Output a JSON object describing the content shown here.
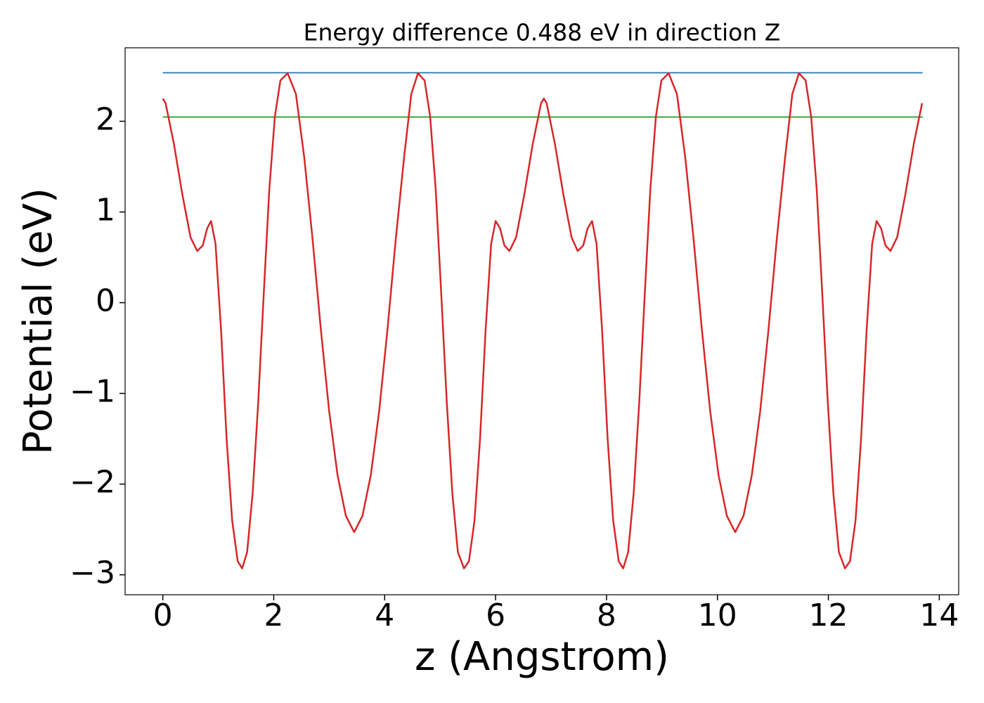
{
  "chart_data": {
    "type": "line",
    "title": "Energy difference 0.488 eV in direction Z",
    "xlabel": "z (Angstrom)",
    "ylabel": "Potential (eV)",
    "xlim": [
      -0.68,
      14.35
    ],
    "ylim": [
      -3.22,
      2.81
    ],
    "xticks": [
      0,
      2,
      4,
      6,
      8,
      10,
      12,
      14
    ],
    "yticks": [
      {
        "value": -3,
        "label": "−3"
      },
      {
        "value": -2,
        "label": "−2"
      },
      {
        "value": -1,
        "label": "−1"
      },
      0,
      1,
      2
    ],
    "series": [
      {
        "color": "#1f77b4",
        "x": [
          0,
          13.7
        ],
        "values": [
          2.535,
          2.535
        ]
      },
      {
        "color": "#2ca02c",
        "x": [
          0,
          13.7
        ],
        "values": [
          2.047,
          2.047
        ]
      },
      {
        "color": "#d62728",
        "x": [
          0,
          0.05,
          0.2,
          0.35,
          0.5,
          0.62,
          0.72,
          0.8,
          0.87,
          0.95,
          1.05,
          1.15,
          1.25,
          1.35,
          1.43,
          1.52,
          1.62,
          1.72,
          1.82,
          1.92,
          2.02,
          2.12,
          2.25,
          2.4,
          2.55,
          2.7,
          2.85,
          3.0,
          3.15,
          3.3,
          3.45,
          3.6,
          3.75,
          3.9,
          4.05,
          4.2,
          4.35,
          4.48,
          4.6,
          4.72,
          4.82,
          4.92,
          5.02,
          5.12,
          5.22,
          5.32,
          5.43,
          5.52,
          5.62,
          5.72,
          5.82,
          5.92,
          6.0,
          6.08,
          6.16,
          6.25,
          6.37,
          6.52,
          6.67,
          6.82,
          6.87,
          6.92,
          7.07,
          7.22,
          7.37,
          7.48,
          7.58,
          7.66,
          7.74,
          7.82,
          7.92,
          8.02,
          8.12,
          8.22,
          8.3,
          8.39,
          8.49,
          8.59,
          8.69,
          8.79,
          8.89,
          8.99,
          9.12,
          9.27,
          9.42,
          9.57,
          9.72,
          9.87,
          10.02,
          10.17,
          10.32,
          10.47,
          10.62,
          10.77,
          10.92,
          11.07,
          11.22,
          11.35,
          11.47,
          11.59,
          11.69,
          11.79,
          11.89,
          11.99,
          12.09,
          12.19,
          12.3,
          12.39,
          12.49,
          12.59,
          12.69,
          12.79,
          12.87,
          12.95,
          13.03,
          13.12,
          13.24,
          13.39,
          13.54,
          13.69
        ],
        "values": [
          2.25,
          2.2,
          1.75,
          1.2,
          0.72,
          0.57,
          0.63,
          0.82,
          0.9,
          0.65,
          -0.3,
          -1.5,
          -2.4,
          -2.85,
          -2.93,
          -2.75,
          -2.1,
          -1.1,
          0.1,
          1.25,
          2.05,
          2.45,
          2.53,
          2.3,
          1.6,
          0.7,
          -0.3,
          -1.2,
          -1.9,
          -2.35,
          -2.53,
          -2.35,
          -1.9,
          -1.2,
          -0.3,
          0.7,
          1.6,
          2.3,
          2.53,
          2.45,
          2.05,
          1.25,
          0.1,
          -1.1,
          -2.1,
          -2.75,
          -2.93,
          -2.85,
          -2.4,
          -1.5,
          -0.3,
          0.65,
          0.9,
          0.82,
          0.63,
          0.57,
          0.72,
          1.2,
          1.75,
          2.2,
          2.25,
          2.2,
          1.75,
          1.2,
          0.72,
          0.57,
          0.63,
          0.82,
          0.9,
          0.65,
          -0.3,
          -1.5,
          -2.4,
          -2.85,
          -2.93,
          -2.75,
          -2.1,
          -1.1,
          0.1,
          1.25,
          2.05,
          2.45,
          2.53,
          2.3,
          1.6,
          0.7,
          -0.3,
          -1.2,
          -1.9,
          -2.35,
          -2.53,
          -2.35,
          -1.9,
          -1.2,
          -0.3,
          0.7,
          1.6,
          2.3,
          2.53,
          2.45,
          2.05,
          1.25,
          0.1,
          -1.1,
          -2.1,
          -2.75,
          -2.93,
          -2.85,
          -2.4,
          -1.5,
          -0.3,
          0.65,
          0.9,
          0.82,
          0.63,
          0.57,
          0.72,
          1.2,
          1.75,
          2.2
        ]
      }
    ]
  }
}
